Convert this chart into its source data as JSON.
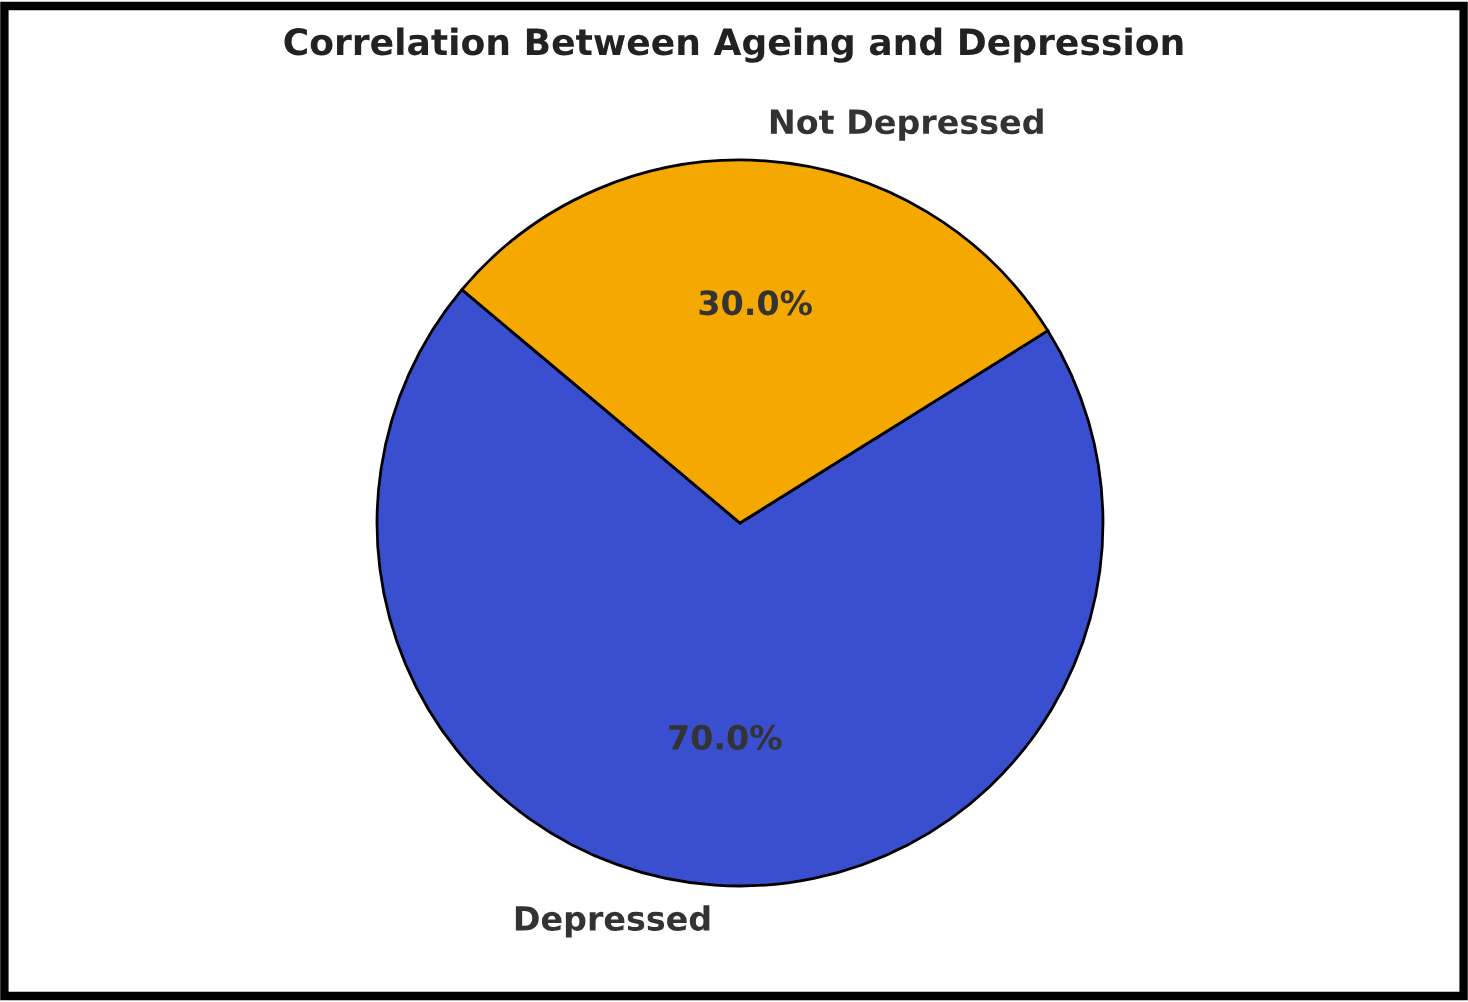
{
  "chart_data": {
    "type": "pie",
    "title": "Correlation Between Ageing and Depression",
    "categories": [
      "Depressed",
      "Not Depressed"
    ],
    "values": [
      70.0,
      30.0
    ],
    "colors": [
      "#3a4fd0",
      "#f5a800"
    ],
    "value_labels": [
      "70.0%",
      "30.0%"
    ]
  }
}
